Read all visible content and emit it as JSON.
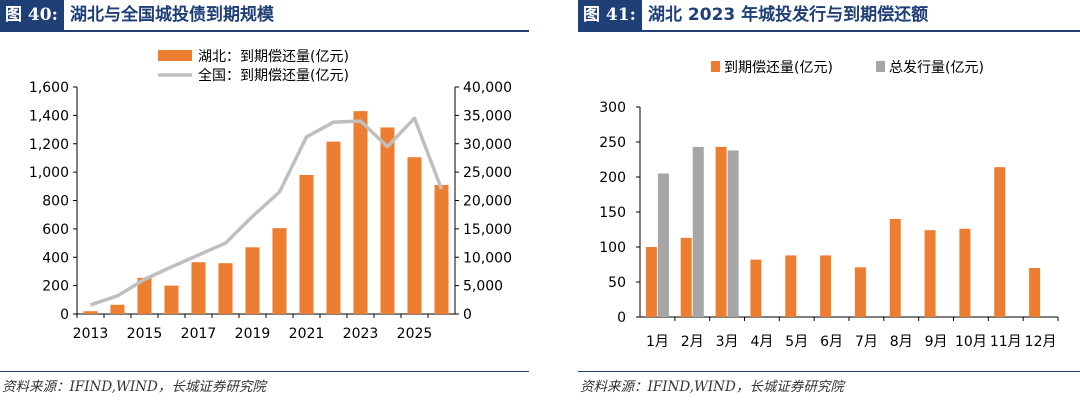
{
  "colors": {
    "orange": "#ed7d31",
    "gray": "#a6a6a6",
    "gray_line": "#bfbfbf",
    "navy": "#1f3f77"
  },
  "left": {
    "tag": "图 40:",
    "title": "湖北与全国城投债到期规模",
    "source": "资料来源：IFIND,WIND，长城证券研究院"
  },
  "right": {
    "tag": "图 41:",
    "title": "湖北 2023 年城投发行与到期偿还额",
    "source": "资料来源：IFIND,WIND，长城证券研究院"
  },
  "chart_data": [
    {
      "type": "bar+line",
      "title": "湖北与全国城投债到期规模",
      "categories": [
        "2013",
        "2014",
        "2015",
        "2016",
        "2017",
        "2018",
        "2019",
        "2020",
        "2021",
        "2022",
        "2023",
        "2024",
        "2025",
        "2026"
      ],
      "x_tick_labels": [
        "2013",
        "",
        "2015",
        "",
        "2017",
        "",
        "2019",
        "",
        "2021",
        "",
        "2023",
        "",
        "2025",
        ""
      ],
      "series": [
        {
          "name": "湖北：到期偿还量(亿元)",
          "type": "bar",
          "axis": "left",
          "color": "#ed7d31",
          "values": [
            20,
            65,
            255,
            200,
            365,
            358,
            470,
            605,
            980,
            1215,
            1430,
            1315,
            1105,
            910
          ]
        },
        {
          "name": "全国：到期偿还量(亿元)",
          "type": "line",
          "axis": "right",
          "color": "#bfbfbf",
          "values": [
            1600,
            3200,
            6100,
            8300,
            10400,
            12500,
            17200,
            21500,
            31200,
            33800,
            34000,
            29500,
            34500,
            22000
          ]
        }
      ],
      "ylim_left": [
        0,
        1600
      ],
      "yticks_left": [
        "0",
        "200",
        "400",
        "600",
        "800",
        "1,000",
        "1,200",
        "1,400",
        "1,600"
      ],
      "ylim_right": [
        0,
        40000
      ],
      "yticks_right": [
        "0",
        "5,000",
        "10,000",
        "15,000",
        "20,000",
        "25,000",
        "30,000",
        "35,000",
        "40,000"
      ],
      "legend": "top"
    },
    {
      "type": "bar",
      "title": "湖北 2023 年城投发行与到期偿还额",
      "categories": [
        "1月",
        "2月",
        "3月",
        "4月",
        "5月",
        "6月",
        "7月",
        "8月",
        "9月",
        "10月",
        "11月",
        "12月"
      ],
      "series": [
        {
          "name": "到期偿还量(亿元)",
          "color": "#ed7d31",
          "values": [
            100,
            113,
            243,
            82,
            88,
            88,
            71,
            140,
            124,
            126,
            214,
            70
          ]
        },
        {
          "name": "总发行量(亿元)",
          "color": "#a6a6a6",
          "values": [
            205,
            243,
            238,
            null,
            null,
            null,
            null,
            null,
            null,
            null,
            null,
            null
          ]
        }
      ],
      "ylim": [
        0,
        300
      ],
      "yticks": [
        "0",
        "50",
        "100",
        "150",
        "200",
        "250",
        "300"
      ],
      "legend": "top"
    }
  ]
}
